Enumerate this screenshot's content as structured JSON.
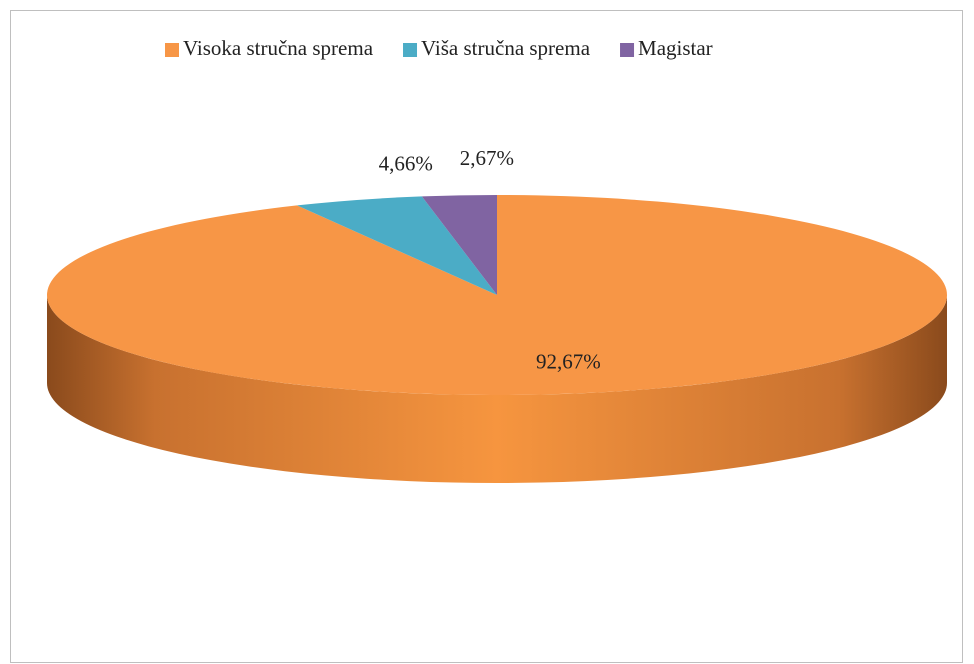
{
  "chart_data": {
    "type": "pie3d",
    "categories": [
      "Visoka stručna sprema",
      "Viša stručna sprema",
      "Magistar"
    ],
    "values": [
      92.67,
      4.66,
      2.67
    ],
    "value_labels": [
      "92,67%",
      "4,66%",
      "2,67%"
    ],
    "colors": [
      "#F79646",
      "#4BACC6",
      "#8064A2"
    ],
    "legend": "top"
  }
}
